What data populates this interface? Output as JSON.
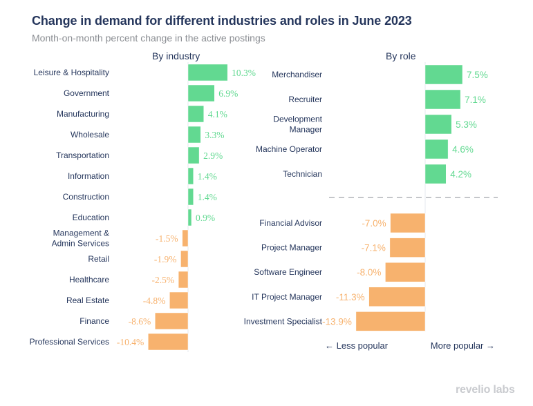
{
  "header": {
    "title": "Change in demand for different industries and roles in June 2023",
    "subtitle": "Month-on-month percent change in the active postings"
  },
  "colors": {
    "positive": "#62d991",
    "negative": "#f7b26e",
    "title": "#25365c",
    "subtitle": "#8a8d92"
  },
  "footer": {
    "less_popular": "← Less popular",
    "more_popular": "More popular →",
    "logo": "revelio labs"
  },
  "chart_data": [
    {
      "type": "bar",
      "orientation": "horizontal",
      "title": "By industry",
      "categories": [
        [
          "Leisure & Hospitality"
        ],
        [
          "Government"
        ],
        [
          "Manufacturing"
        ],
        [
          "Wholesale"
        ],
        [
          "Transportation"
        ],
        [
          "Information"
        ],
        [
          "Construction"
        ],
        [
          "Education"
        ],
        [
          "Management &",
          "Admin Services"
        ],
        [
          "Retail"
        ],
        [
          "Healthcare"
        ],
        [
          "Real Estate"
        ],
        [
          "Finance"
        ],
        [
          "Professional Services"
        ]
      ],
      "values": [
        10.3,
        6.9,
        4.1,
        3.3,
        2.9,
        1.4,
        1.4,
        0.9,
        -1.5,
        -1.9,
        -2.5,
        -4.8,
        -8.6,
        -10.4
      ],
      "labels": [
        "10.3%",
        "6.9%",
        "4.1%",
        "3.3%",
        "2.9%",
        "1.4%",
        "1.4%",
        "0.9%",
        "-1.5%",
        "-1.9%",
        "-2.5%",
        "-4.8%",
        "-8.6%",
        "-10.4%"
      ],
      "xlabel": "",
      "ylabel": "",
      "grid": false
    },
    {
      "type": "bar",
      "orientation": "horizontal",
      "title": "By role",
      "categories": [
        [
          "Merchandiser"
        ],
        [
          "Recruiter"
        ],
        [
          "Development",
          "Manager"
        ],
        [
          "Machine Operator"
        ],
        [
          "Technician"
        ],
        [
          "Financial Advisor"
        ],
        [
          "Project Manager"
        ],
        [
          "Software Engineer"
        ],
        [
          "IT Project Manager"
        ],
        [
          "Investment Specialist"
        ]
      ],
      "values": [
        7.5,
        7.1,
        5.3,
        4.6,
        4.2,
        -7.0,
        -7.1,
        -8.0,
        -11.3,
        -13.9
      ],
      "labels": [
        "7.5%",
        "7.1%",
        "5.3%",
        "4.6%",
        "4.2%",
        "-7.0%",
        "-7.1%",
        "-8.0%",
        "-11.3%",
        "-13.9%"
      ],
      "separator": "dashed line between top gainers and top decliners",
      "xlabel": "",
      "ylabel": "",
      "grid": false
    }
  ]
}
